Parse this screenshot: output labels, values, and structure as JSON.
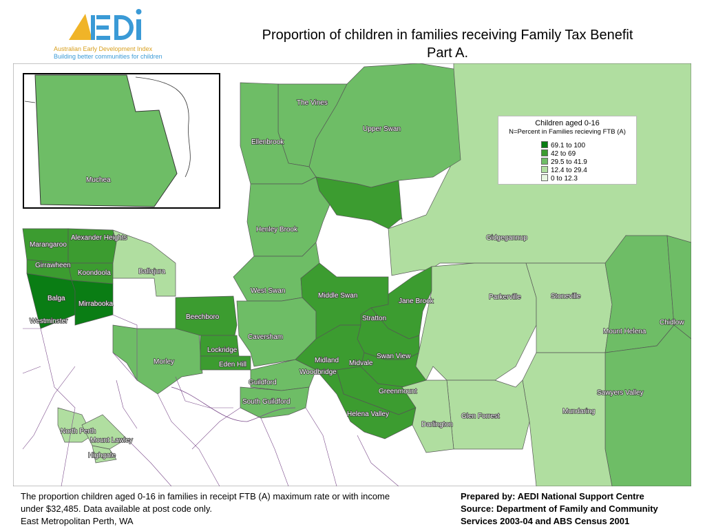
{
  "logo": {
    "wordmark": "AEDI",
    "line1": "Australian Early Development Index",
    "line2": "Building better communities for children"
  },
  "title": {
    "line1": "Proportion of children in families receiving Family Tax Benefit",
    "line2": "Part A."
  },
  "legend": {
    "title": "Children aged 0-16",
    "subtitle": "N=Percent in Families recieving FTB (A)",
    "classes": [
      {
        "label": "69.1  to  100",
        "color": "#0a7d14"
      },
      {
        "label": "42    to    69",
        "color": "#3c9c30"
      },
      {
        "label": "29.5  to    41.9",
        "color": "#6ebd66"
      },
      {
        "label": "12.4  to    29.4",
        "color": "#b0dea0"
      },
      {
        "label": "0    to    12.3",
        "color": "#e9f6e2"
      }
    ]
  },
  "suburbs": [
    "The Vines",
    "Upper Swan",
    "Ellenbrook",
    "Muchea",
    "Henley Brook",
    "Gidgegannup",
    "Alexander Heights",
    "Marangaroo",
    "Girrawheen",
    "Koondoola",
    "Ballajura",
    "Balga",
    "Mirrabooka",
    "Westminster",
    "West Swan",
    "Middle Swan",
    "Jane Brook",
    "Parkerville",
    "Stoneville",
    "Chidlow",
    "Beechboro",
    "Stratton",
    "Mount Helena",
    "Caversham",
    "Lockridge",
    "Morley",
    "Eden Hill",
    "Midland",
    "Midvale",
    "Swan View",
    "Woodbridge",
    "Guildford",
    "Greenmount",
    "South Guildford",
    "Sawyers Valley",
    "Mundaring",
    "Helena Valley",
    "Glen Forrest",
    "Darlington",
    "North Perth",
    "Mount Lawley",
    "Highgate"
  ],
  "footer": {
    "left_line1": "The proportion children aged 0-16 in families in receipt FTB (A) maximum rate or with income",
    "left_line2": "under $32,485.  Data available at post code only.",
    "left_line3": "East Metropolitan Perth, WA",
    "right_line1": "Prepared by: AEDI National Support Centre",
    "right_line2": "Source: Department of Family and Community",
    "right_line3": "Services 2003-04 and ABS Census 2001"
  }
}
